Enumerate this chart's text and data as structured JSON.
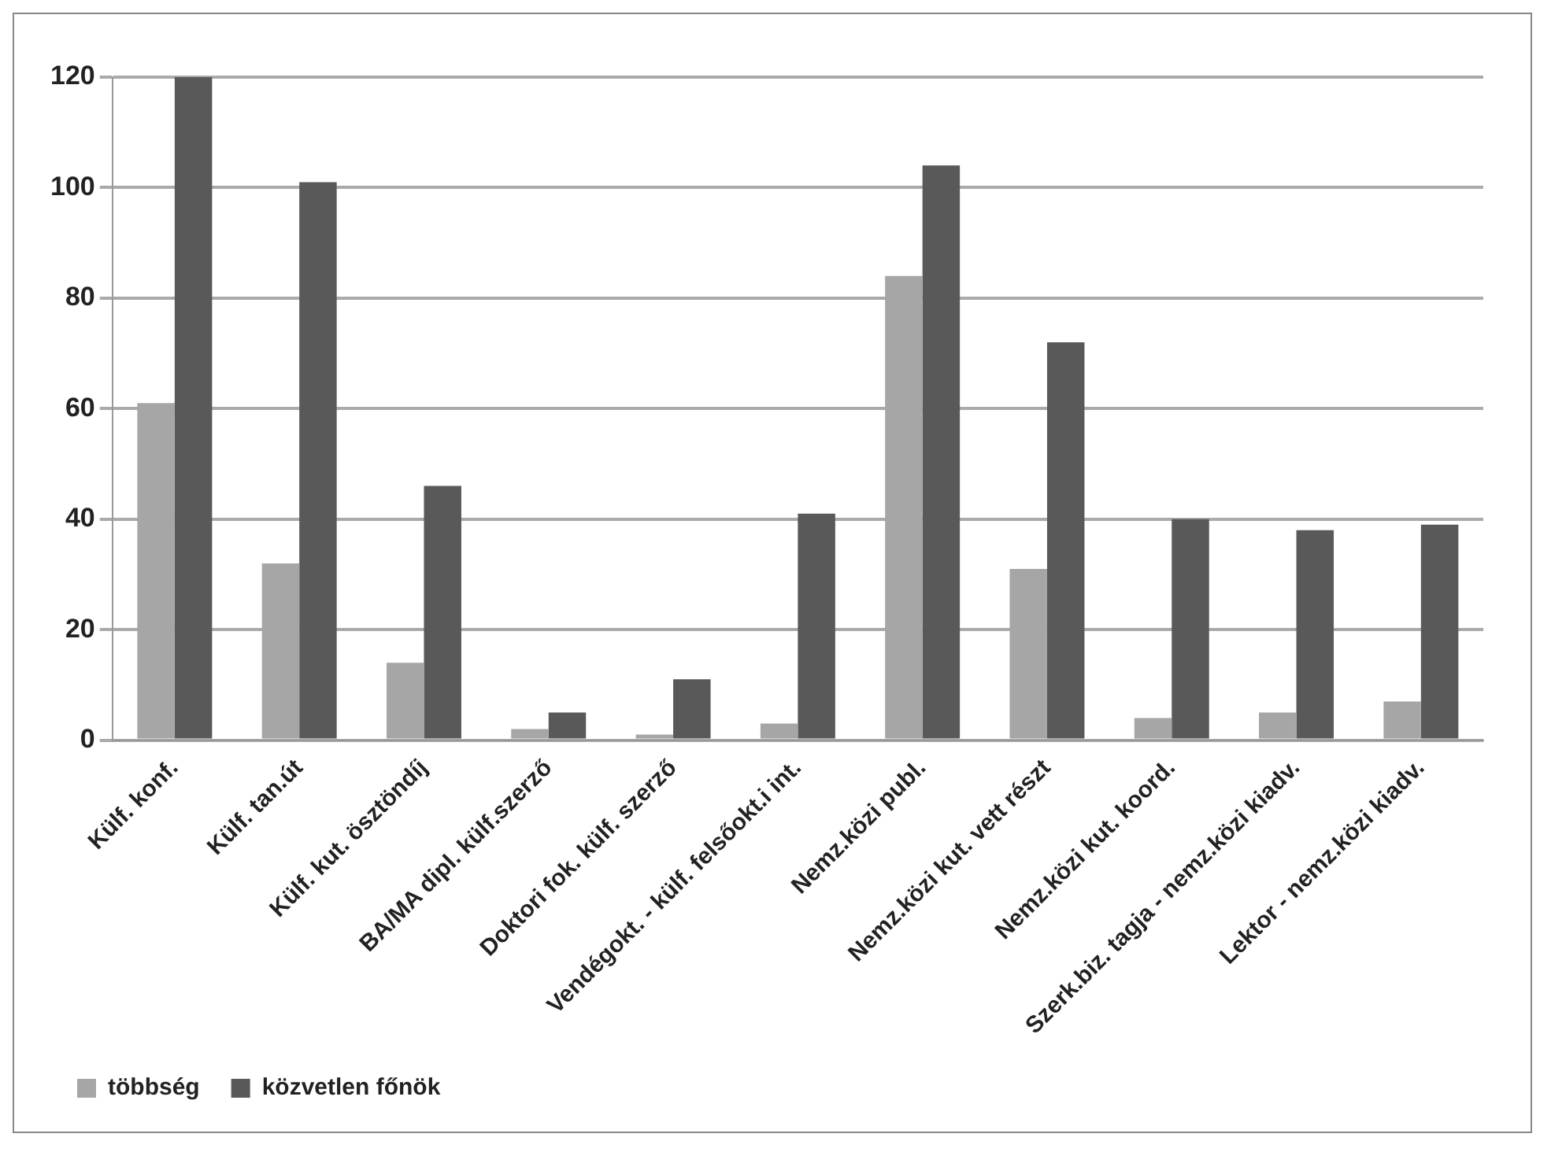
{
  "chart_data": {
    "type": "bar",
    "categories": [
      "Külf. konf.",
      "Külf. tan.út",
      "Külf. kut. ösztöndíj",
      "BA/MA dipl. külf.szerző",
      "Doktori fok. külf. szerző",
      "Vendégokt. - külf. felsőokt.i int.",
      "Nemz.közi publ.",
      "Nemz.közi kut. vett részt",
      "Nemz.közi kut. koord.",
      "Szerk.biz. tagja - nemz.közi kiadv.",
      "Lektor - nemz.közi kiadv."
    ],
    "series": [
      {
        "name": "többség",
        "color": "#a6a6a6",
        "values": [
          61,
          32,
          14,
          2,
          1,
          3,
          84,
          31,
          4,
          5,
          7
        ]
      },
      {
        "name": "közvetlen főnök",
        "color": "#595959",
        "values": [
          120,
          101,
          46,
          5,
          11,
          41,
          104,
          72,
          40,
          38,
          39
        ]
      }
    ],
    "ylim": [
      0,
      120
    ],
    "yticks": [
      0,
      20,
      40,
      60,
      80,
      100,
      120
    ],
    "grid": "y",
    "legend": "bottom left"
  }
}
